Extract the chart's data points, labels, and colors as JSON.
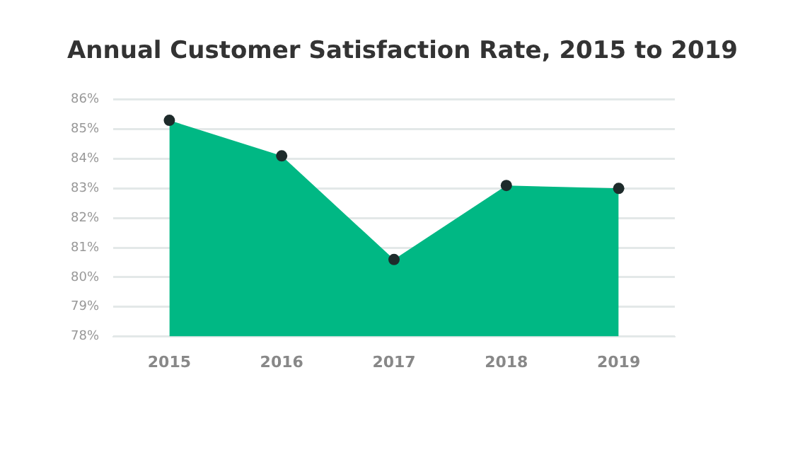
{
  "chart_data": {
    "type": "area",
    "title": "Annual Customer Satisfaction Rate, 2015 to 2019",
    "categories": [
      "2015",
      "2016",
      "2017",
      "2018",
      "2019"
    ],
    "series": [
      {
        "color": "#00b884",
        "values": [
          85.3,
          84.1,
          80.6,
          83.1,
          83.0
        ]
      }
    ],
    "ylim": [
      78,
      86
    ],
    "yticks": [
      {
        "value": 78,
        "label": "78%"
      },
      {
        "value": 79,
        "label": "79%"
      },
      {
        "value": 80,
        "label": "80%"
      },
      {
        "value": 81,
        "label": "81%"
      },
      {
        "value": 82,
        "label": "82%"
      },
      {
        "value": 83,
        "label": "83%"
      },
      {
        "value": 84,
        "label": "84%"
      },
      {
        "value": 85,
        "label": "85%"
      },
      {
        "value": 86,
        "label": "86%"
      }
    ],
    "grid": "y",
    "marker": "circle",
    "legend": false
  }
}
